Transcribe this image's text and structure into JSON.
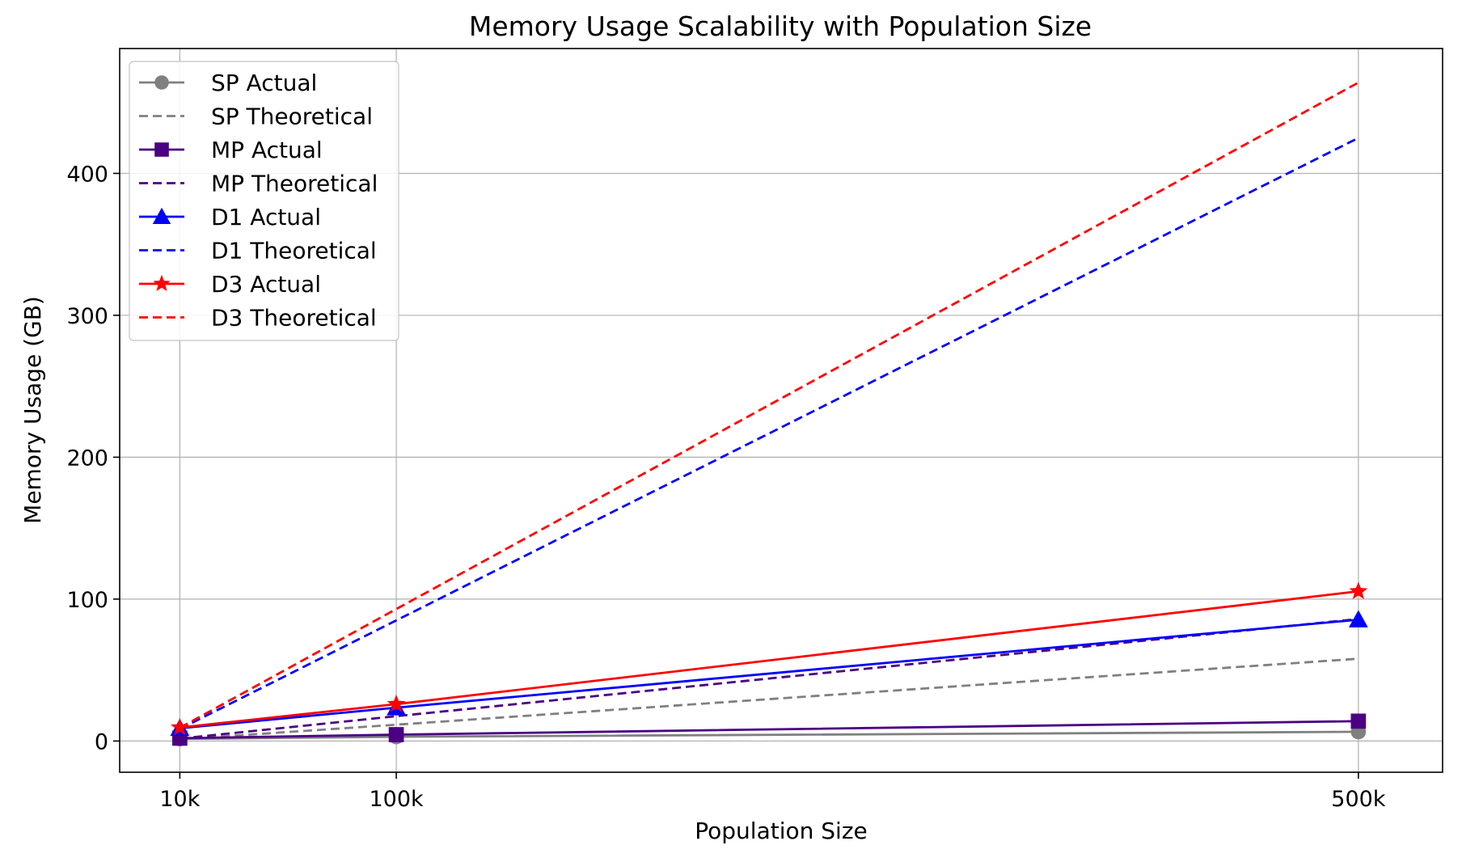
{
  "chart_data": {
    "type": "line",
    "title": "Memory Usage Scalability with Population Size",
    "xlabel": "Population Size",
    "ylabel": "Memory Usage (GB)",
    "x": [
      10000,
      100000,
      500000
    ],
    "x_tick_labels": [
      "10k",
      "100k",
      "500k"
    ],
    "xlim": [
      -15000,
      535000
    ],
    "ylim": [
      -22,
      488
    ],
    "y_ticks": [
      0,
      100,
      200,
      300,
      400
    ],
    "grid": true,
    "legend_position": "upper-left",
    "series": [
      {
        "name": "SP Actual",
        "style": "solid",
        "marker": "circle",
        "color": "#808080",
        "values": [
          1.5,
          3,
          6.5
        ]
      },
      {
        "name": "SP Theoretical",
        "style": "dashed",
        "marker": "none",
        "color": "#808080",
        "values": [
          1.2,
          11.5,
          58
        ]
      },
      {
        "name": "MP Actual",
        "style": "solid",
        "marker": "square",
        "color": "#4b0082",
        "values": [
          2,
          4.5,
          14
        ]
      },
      {
        "name": "MP Theoretical",
        "style": "dashed",
        "marker": "none",
        "color": "#4b0082",
        "values": [
          1.7,
          17.5,
          86
        ]
      },
      {
        "name": "D1 Actual",
        "style": "solid",
        "marker": "triangle",
        "color": "#0000ff",
        "values": [
          9,
          23.5,
          85.5
        ]
      },
      {
        "name": "D1 Theoretical",
        "style": "dashed",
        "marker": "none",
        "color": "#0000ff",
        "values": [
          8.5,
          85,
          425
        ]
      },
      {
        "name": "D3 Actual",
        "style": "solid",
        "marker": "star",
        "color": "#ff0000",
        "values": [
          9.5,
          26,
          105.5
        ]
      },
      {
        "name": "D3 Theoretical",
        "style": "dashed",
        "marker": "none",
        "color": "#ff0000",
        "values": [
          9.3,
          93,
          464
        ]
      }
    ]
  }
}
